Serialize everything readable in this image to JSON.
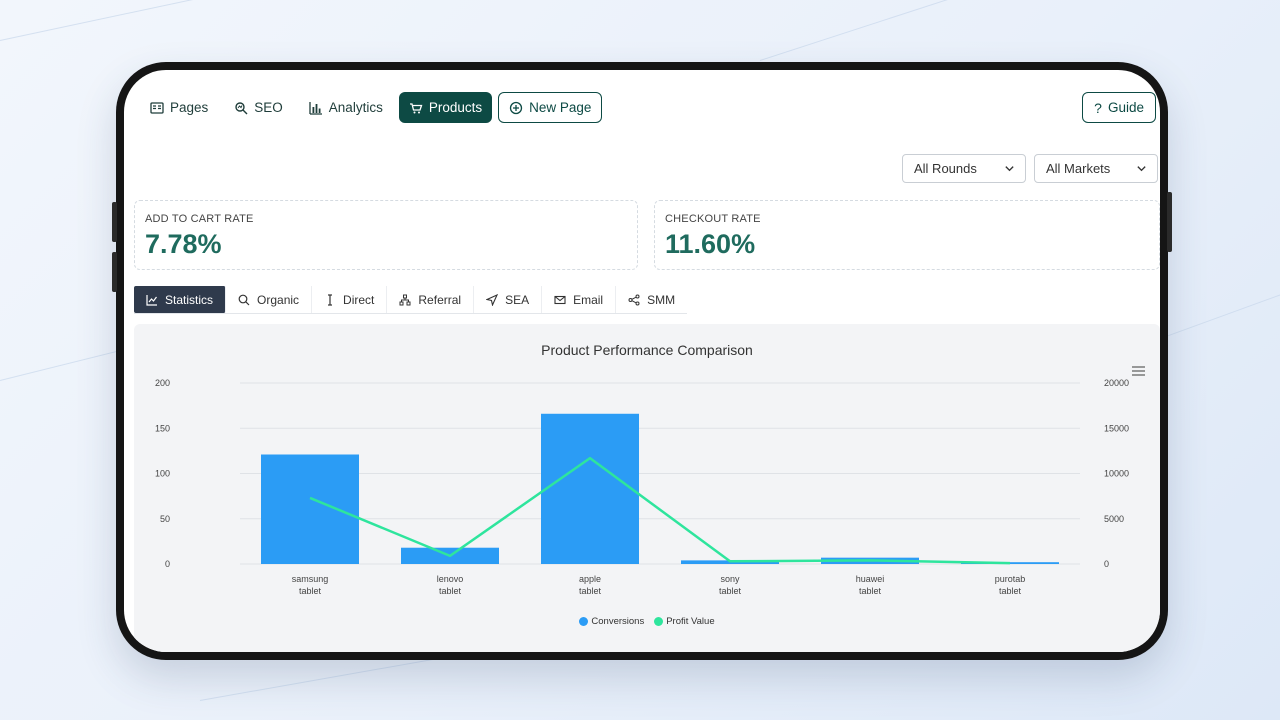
{
  "nav": {
    "items": [
      {
        "label": "Pages",
        "icon": "pages-icon"
      },
      {
        "label": "SEO",
        "icon": "seo-icon"
      },
      {
        "label": "Analytics",
        "icon": "analytics-icon"
      },
      {
        "label": "Products",
        "icon": "cart-icon",
        "active": true
      },
      {
        "label": "New Page",
        "icon": "plus-icon"
      }
    ],
    "guide_label": "Guide"
  },
  "filters": {
    "rounds": "All Rounds",
    "markets": "All Markets"
  },
  "kpis": {
    "add_to_cart": {
      "label": "ADD TO CART RATE",
      "value": "7.78%"
    },
    "checkout": {
      "label": "CHECKOUT RATE",
      "value": "11.60%"
    }
  },
  "tabs": [
    {
      "label": "Statistics",
      "icon": "line-chart-icon",
      "active": true
    },
    {
      "label": "Organic",
      "icon": "search-icon"
    },
    {
      "label": "Direct",
      "icon": "cursor-icon"
    },
    {
      "label": "Referral",
      "icon": "network-icon"
    },
    {
      "label": "SEA",
      "icon": "send-icon"
    },
    {
      "label": "Email",
      "icon": "mail-icon"
    },
    {
      "label": "SMM",
      "icon": "share-icon"
    }
  ],
  "colors": {
    "accent": "#0d4a44",
    "kpi_value": "#1f6b5e",
    "conversions": "#2b9cf5",
    "profit": "#2ee59d"
  },
  "chart_data": {
    "type": "bar",
    "title": "Product Performance Comparison",
    "categories": [
      [
        "samsung",
        "tablet"
      ],
      [
        "lenovo",
        "tablet"
      ],
      [
        "apple",
        "tablet"
      ],
      [
        "sony",
        "tablet"
      ],
      [
        "huawei",
        "tablet"
      ],
      [
        "purotab",
        "tablet"
      ]
    ],
    "series": [
      {
        "name": "Conversions",
        "type": "bar",
        "axis": "left",
        "values": [
          121,
          18,
          166,
          4,
          7,
          2
        ]
      },
      {
        "name": "Profit Value",
        "type": "line",
        "axis": "right",
        "values": [
          7300,
          900,
          11700,
          300,
          400,
          100
        ]
      }
    ],
    "y_left": {
      "min": 0,
      "max": 200,
      "ticks": [
        0,
        50,
        100,
        150,
        200
      ]
    },
    "y_right": {
      "min": 0,
      "max": 20000,
      "ticks": [
        0,
        5000,
        10000,
        15000,
        20000
      ]
    },
    "grid": true,
    "legend": "bottom-center"
  }
}
